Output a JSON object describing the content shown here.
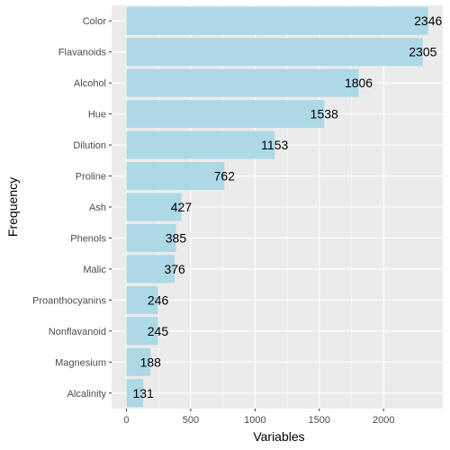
{
  "chart_data": {
    "type": "bar",
    "orientation": "horizontal",
    "categories": [
      "Color",
      "Flavanoids",
      "Alcohol",
      "Hue",
      "Dilution",
      "Proline",
      "Ash",
      "Phenols",
      "Malic",
      "Proanthocyanins",
      "Nonflavanoid",
      "Magnesium",
      "Alcalinity"
    ],
    "values": [
      2346,
      2305,
      1806,
      1538,
      1153,
      762,
      427,
      385,
      376,
      246,
      245,
      188,
      131
    ],
    "xlabel": "Variables",
    "ylabel": "Frequency",
    "xlim": [
      -115,
      2460
    ],
    "x_ticks": [
      0,
      500,
      1000,
      1500,
      2000
    ],
    "grid": true,
    "legend": "none",
    "colors": {
      "bar": "#add8e6",
      "panel_background": "#ebebeb",
      "grid": "#ffffff"
    }
  }
}
